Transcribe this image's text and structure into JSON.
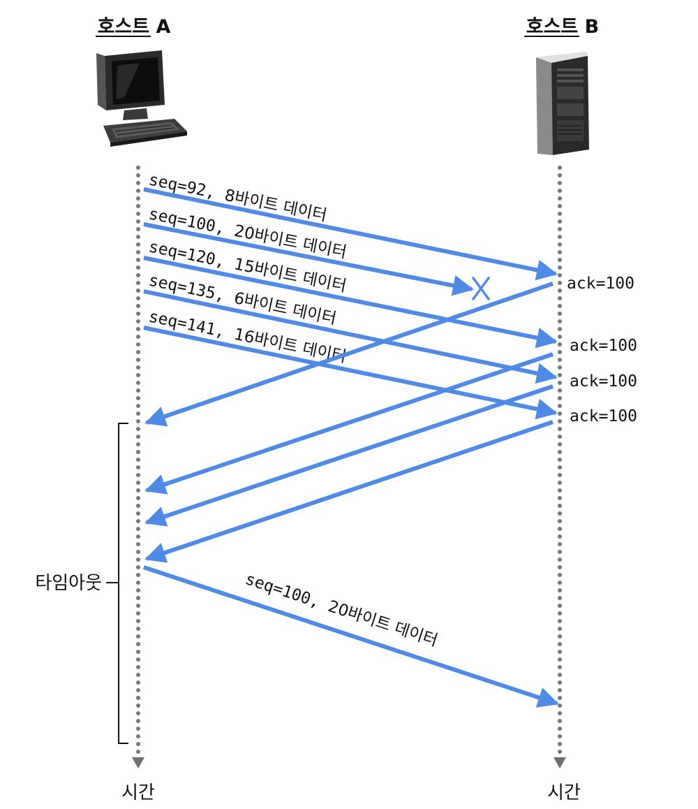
{
  "hosts": {
    "a": {
      "title": "호스트 A",
      "time_label": "시간",
      "icon": "computer-icon"
    },
    "b": {
      "title": "호스트 B",
      "time_label": "시간",
      "icon": "server-icon"
    }
  },
  "colors": {
    "arrow": "#4f8be6",
    "lifeline": "#777777"
  },
  "segments": [
    {
      "seq": "seq=92,",
      "data": "8바이트 데이터"
    },
    {
      "seq": "seq=100,",
      "data": "20바이트 데이터",
      "lost": true
    },
    {
      "seq": "seq=120,",
      "data": "15바이트 데이터"
    },
    {
      "seq": "seq=135,",
      "data": "6바이트 데이터"
    },
    {
      "seq": "seq=141,",
      "data": "16바이트 데이터"
    }
  ],
  "acks": [
    "ack=100",
    "ack=100",
    "ack=100",
    "ack=100"
  ],
  "timeout_label": "타임아웃",
  "retransmit": {
    "seq": "seq=100,",
    "data": "20바이트 데이터"
  }
}
